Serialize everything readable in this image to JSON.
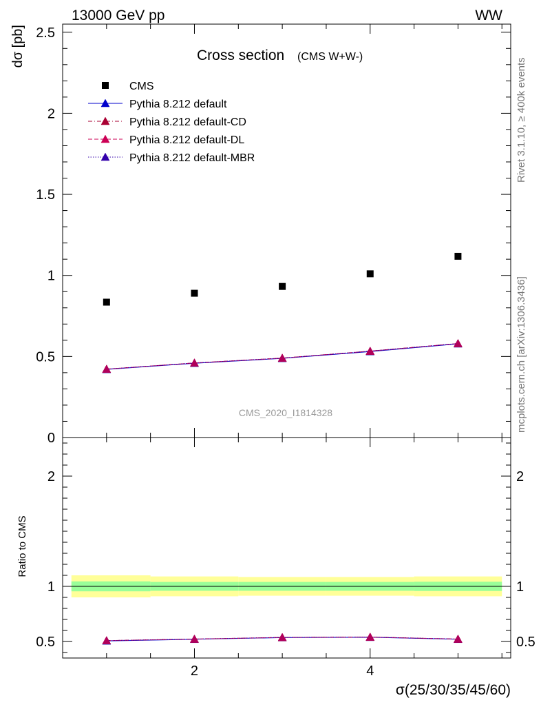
{
  "header": {
    "left": "13000 GeV pp",
    "right": "WW"
  },
  "side_labels": {
    "rivet": "Rivet 3.1.10, ≥ 400k events",
    "mcplots": "mcplots.cern.ch [arXiv:1306.3436]"
  },
  "chart_data": [
    {
      "type": "scatter",
      "title": "Cross section",
      "subtitle": "(CMS W+W-)",
      "ylabel": "dσ [pb]",
      "xlabel": "σ(25/30/35/45/60)",
      "watermark": "CMS_2020_I1814328",
      "xlim": [
        0.5,
        5.6
      ],
      "ylim": [
        0,
        2.55
      ],
      "yticks": [
        0,
        0.5,
        1,
        1.5,
        2,
        2.5
      ],
      "ytick_labels": [
        "0",
        "0.5",
        "1",
        "1.5",
        "2",
        "2.5"
      ],
      "legend_position": "top-left",
      "x": [
        1,
        2,
        3,
        4,
        5
      ],
      "series": [
        {
          "name": "CMS",
          "marker": "square",
          "color": "#000000",
          "line": "none",
          "values": [
            0.835,
            0.89,
            0.932,
            1.01,
            1.118
          ]
        },
        {
          "name": "Pythia 8.212 default",
          "marker": "triangle",
          "color": "#0000cc",
          "line": "solid",
          "values": [
            0.42,
            0.458,
            0.488,
            0.53,
            0.578
          ]
        },
        {
          "name": "Pythia 8.212 default-CD",
          "marker": "triangle",
          "color": "#aa0033",
          "line": "dashdot",
          "values": [
            0.422,
            0.46,
            0.49,
            0.533,
            0.58
          ]
        },
        {
          "name": "Pythia 8.212 default-DL",
          "marker": "triangle",
          "color": "#cc0055",
          "line": "dashed",
          "values": [
            0.422,
            0.46,
            0.49,
            0.533,
            0.58
          ]
        },
        {
          "name": "Pythia 8.212 default-MBR",
          "marker": "triangle",
          "color": "#3300aa",
          "line": "dotted",
          "values": [
            0.422,
            0.46,
            0.49,
            0.533,
            0.58
          ]
        }
      ]
    },
    {
      "type": "line",
      "ylabel": "Ratio to CMS",
      "xlim": [
        0.5,
        5.6
      ],
      "ylim": [
        0.35,
        2.35
      ],
      "yticks": [
        0.5,
        1,
        2
      ],
      "ytick_labels": [
        "0.5",
        "1",
        "2"
      ],
      "xticks": [
        2,
        4
      ],
      "xtick_labels": [
        "2",
        "4"
      ],
      "bins": [
        [
          0.6,
          1.5
        ],
        [
          1.5,
          2.5
        ],
        [
          2.5,
          3.5
        ],
        [
          3.5,
          4.5
        ],
        [
          4.5,
          5.5
        ]
      ],
      "band_outer": [
        [
          0.9,
          1.1
        ],
        [
          0.91,
          1.09
        ],
        [
          0.915,
          1.085
        ],
        [
          0.915,
          1.085
        ],
        [
          0.91,
          1.09
        ]
      ],
      "band_inner": [
        [
          0.955,
          1.045
        ],
        [
          0.96,
          1.04
        ],
        [
          0.96,
          1.04
        ],
        [
          0.96,
          1.04
        ],
        [
          0.958,
          1.042
        ]
      ],
      "reference": 1,
      "x": [
        1,
        2,
        3,
        4,
        5
      ],
      "series": [
        {
          "name": "Pythia 8.212 default",
          "color": "#0000cc",
          "line": "solid",
          "values": [
            0.505,
            0.52,
            0.535,
            0.538,
            0.52
          ]
        },
        {
          "name": "Pythia 8.212 default-CD",
          "color": "#aa0033",
          "line": "dashdot",
          "values": [
            0.508,
            0.522,
            0.537,
            0.54,
            0.522
          ]
        },
        {
          "name": "Pythia 8.212 default-DL",
          "color": "#cc0055",
          "line": "dashed",
          "values": [
            0.508,
            0.522,
            0.537,
            0.54,
            0.522
          ]
        },
        {
          "name": "Pythia 8.212 default-MBR",
          "color": "#3300aa",
          "line": "dotted",
          "values": [
            0.508,
            0.522,
            0.537,
            0.54,
            0.522
          ]
        }
      ]
    }
  ]
}
